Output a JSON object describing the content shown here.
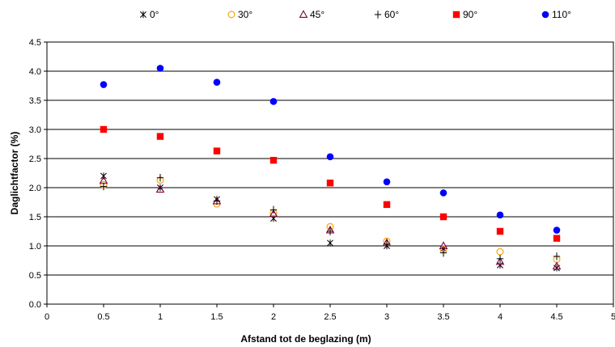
{
  "chart_data": {
    "type": "scatter",
    "title": "",
    "xlabel": "Afstand tot de beglazing (m)",
    "ylabel": "Daglichtfactor (%)",
    "xlim": [
      0,
      5
    ],
    "ylim": [
      0,
      4.5
    ],
    "xticks": [
      "0",
      "0.5",
      "1",
      "1.5",
      "2",
      "2.5",
      "3",
      "3.5",
      "4",
      "4.5",
      "5"
    ],
    "yticks": [
      "0.0",
      "0.5",
      "1.0",
      "1.5",
      "2.0",
      "2.5",
      "3.0",
      "3.5",
      "4.0",
      "4.5"
    ],
    "grid": "horizontal",
    "legend_position": "top",
    "series": [
      {
        "name": "0°",
        "marker": "asterisk",
        "color": "#000000",
        "x": [
          0.5,
          1,
          1.5,
          2,
          2.5,
          3,
          3.5,
          4,
          4.5
        ],
        "y": [
          2.2,
          2.0,
          1.8,
          1.47,
          1.05,
          1.0,
          0.95,
          0.67,
          0.62
        ]
      },
      {
        "name": "30°",
        "marker": "circle-open",
        "color": "#FFA500",
        "x": [
          0.5,
          1,
          1.5,
          2,
          2.5,
          3,
          3.5,
          4,
          4.5
        ],
        "y": [
          2.05,
          2.13,
          1.72,
          1.57,
          1.33,
          1.08,
          0.95,
          0.9,
          0.77
        ]
      },
      {
        "name": "45°",
        "marker": "triangle-open",
        "color": "#800040",
        "x": [
          0.5,
          1,
          1.5,
          2,
          2.5,
          3,
          3.5,
          4,
          4.5
        ],
        "y": [
          2.12,
          1.97,
          1.77,
          1.55,
          1.27,
          1.05,
          1.0,
          0.73,
          0.65
        ]
      },
      {
        "name": "60°",
        "marker": "plus",
        "color": "#000000",
        "x": [
          0.5,
          1,
          1.5,
          2,
          2.5,
          3,
          3.5,
          4,
          4.5
        ],
        "y": [
          2.02,
          2.17,
          1.77,
          1.62,
          1.25,
          1.03,
          0.88,
          0.78,
          0.82
        ]
      },
      {
        "name": "90°",
        "marker": "square",
        "color": "#FF0000",
        "x": [
          0.5,
          1,
          1.5,
          2,
          2.5,
          3,
          3.5,
          4,
          4.5
        ],
        "y": [
          3.0,
          2.88,
          2.63,
          2.47,
          2.08,
          1.71,
          1.5,
          1.25,
          1.13
        ]
      },
      {
        "name": "110°",
        "marker": "circle",
        "color": "#0000FF",
        "x": [
          0.5,
          1,
          1.5,
          2,
          2.5,
          3,
          3.5,
          4,
          4.5
        ],
        "y": [
          3.77,
          4.05,
          3.81,
          3.48,
          2.53,
          2.1,
          1.91,
          1.53,
          1.27
        ]
      }
    ]
  }
}
